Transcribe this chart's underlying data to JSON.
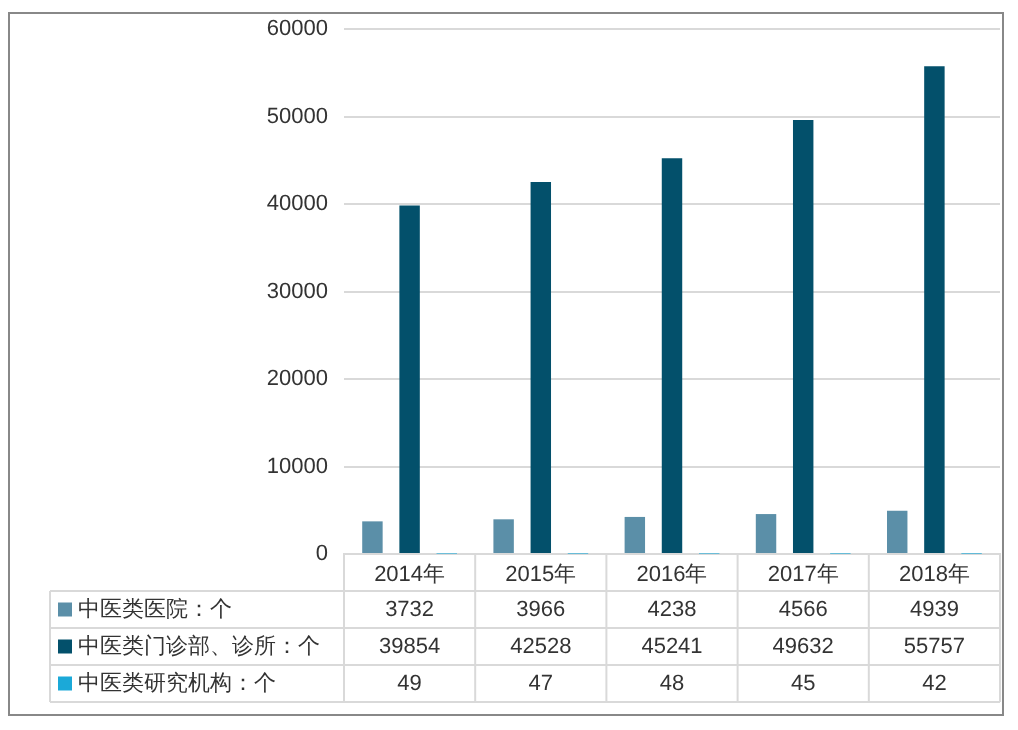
{
  "chart_data": {
    "type": "bar",
    "categories": [
      "2014年",
      "2015年",
      "2016年",
      "2017年",
      "2018年"
    ],
    "series": [
      {
        "name": "中医类医院：个",
        "color": "#5b8fa8",
        "values": [
          3732,
          3966,
          4238,
          4566,
          4939
        ]
      },
      {
        "name": "中医类门诊部、诊所：个",
        "color": "#03506b",
        "values": [
          39854,
          42528,
          45241,
          49632,
          55757
        ]
      },
      {
        "name": "中医类研究机构：个",
        "color": "#1ba9d8",
        "values": [
          49,
          47,
          48,
          45,
          42
        ]
      }
    ],
    "ylim": [
      0,
      60000
    ],
    "yticks": [
      0,
      10000,
      20000,
      30000,
      40000,
      50000,
      60000
    ],
    "grid": "y",
    "legend": "bottom",
    "data_labels": true
  }
}
